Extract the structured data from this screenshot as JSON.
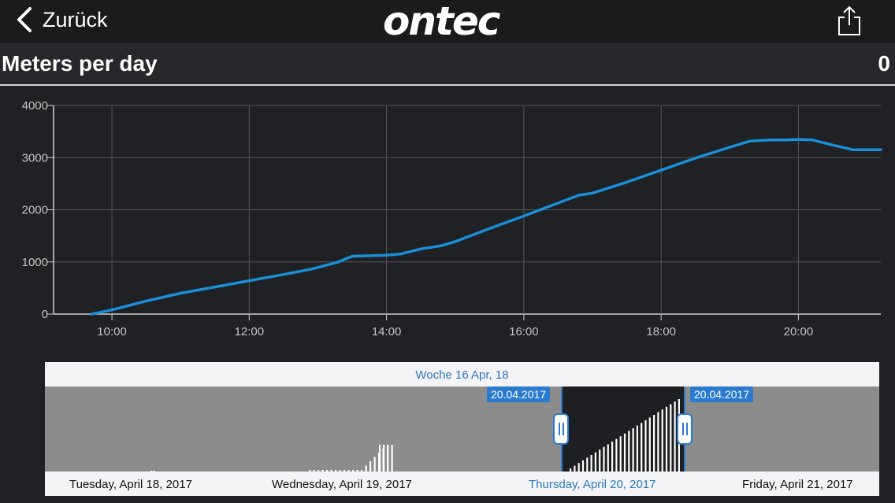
{
  "nav": {
    "back_label": "Zurück",
    "logo_text": "ontec",
    "share_icon": "share-icon"
  },
  "header": {
    "title": "Meters per day",
    "value": "0"
  },
  "chart_data": {
    "type": "line",
    "x_unit": "time of day (hours)",
    "xlim": [
      9.15,
      21.2
    ],
    "ylim": [
      0,
      4000
    ],
    "yticks": [
      "0",
      "1000",
      "2000",
      "3000",
      "4000"
    ],
    "xticks": [
      "10:00",
      "12:00",
      "14:00",
      "16:00",
      "18:00",
      "20:00"
    ],
    "grid": true,
    "line_color": "#1a8fd6",
    "series": [
      {
        "x": [
          9.7,
          10.0,
          10.5,
          11.0,
          11.5,
          12.0,
          12.5,
          12.9,
          13.3,
          13.5,
          13.8,
          14.0,
          14.2,
          14.5,
          14.8,
          15.0,
          15.5,
          16.0,
          16.5,
          16.8,
          17.0,
          17.5,
          18.0,
          18.5,
          19.0,
          19.3,
          19.6,
          19.8,
          20.0,
          20.2,
          20.5,
          20.8,
          21.2
        ],
        "y": [
          0,
          80,
          250,
          400,
          520,
          640,
          760,
          860,
          1000,
          1110,
          1120,
          1130,
          1150,
          1250,
          1310,
          1390,
          1640,
          1880,
          2130,
          2280,
          2320,
          2530,
          2760,
          2990,
          3200,
          3320,
          3340,
          3340,
          3350,
          3340,
          3240,
          3150,
          3150
        ]
      }
    ]
  },
  "navigator": {
    "week_label": "Woche 16 Apr, 18",
    "days": [
      "Tuesday, April 18, 2017",
      "Wednesday, April 19, 2017",
      "Thursday, April 20, 2017",
      "Friday, April 21, 2017"
    ],
    "selected_day_index": 2,
    "range_start": "20.04.2017",
    "range_end": "20.04.2017",
    "bar_color": "#ffffff"
  }
}
